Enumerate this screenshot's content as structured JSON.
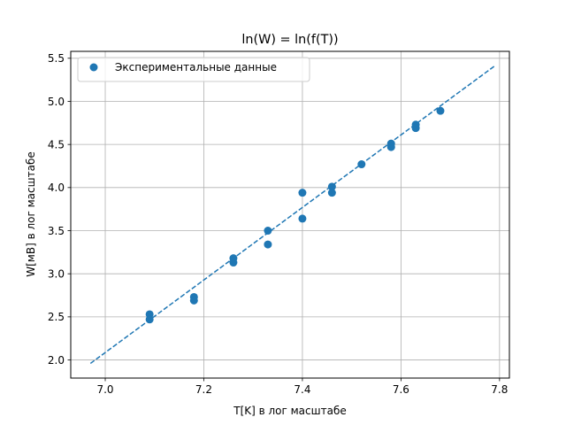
{
  "chart_data": {
    "type": "scatter",
    "title": "ln(W) = ln(f(T))",
    "xlabel": "T[K] в лог масштабе",
    "ylabel": "W[мВ] в лог масштабе",
    "xlim": [
      6.93,
      7.82
    ],
    "ylim": [
      1.79,
      5.58
    ],
    "xticks": [
      7.0,
      7.2,
      7.4,
      7.6,
      7.8
    ],
    "xtick_labels": [
      "7.0",
      "7.2",
      "7.4",
      "7.6",
      "7.8"
    ],
    "yticks": [
      2.0,
      2.5,
      3.0,
      3.5,
      4.0,
      4.5,
      5.0,
      5.5
    ],
    "ytick_labels": [
      "2.0",
      "2.5",
      "3.0",
      "3.5",
      "4.0",
      "4.5",
      "5.0",
      "5.5"
    ],
    "grid": true,
    "legend": {
      "position": "top-left",
      "entries": [
        "Экспериментальные данные"
      ]
    },
    "colors": {
      "series": "#1f77b4",
      "grid": "#b0b0b0",
      "axes": "#000000"
    },
    "series": [
      {
        "name": "Экспериментальные данные",
        "kind": "scatter",
        "x": [
          7.09,
          7.09,
          7.18,
          7.18,
          7.26,
          7.26,
          7.33,
          7.33,
          7.4,
          7.4,
          7.46,
          7.46,
          7.52,
          7.58,
          7.58,
          7.63,
          7.63,
          7.68
        ],
        "y": [
          2.53,
          2.47,
          2.73,
          2.69,
          3.18,
          3.13,
          3.5,
          3.34,
          3.94,
          3.64,
          4.01,
          3.94,
          4.27,
          4.51,
          4.47,
          4.73,
          4.69,
          4.89
        ]
      },
      {
        "kind": "fit-line",
        "style": "dashed",
        "x": [
          6.97,
          7.79
        ],
        "y": [
          1.96,
          5.41
        ]
      }
    ]
  }
}
